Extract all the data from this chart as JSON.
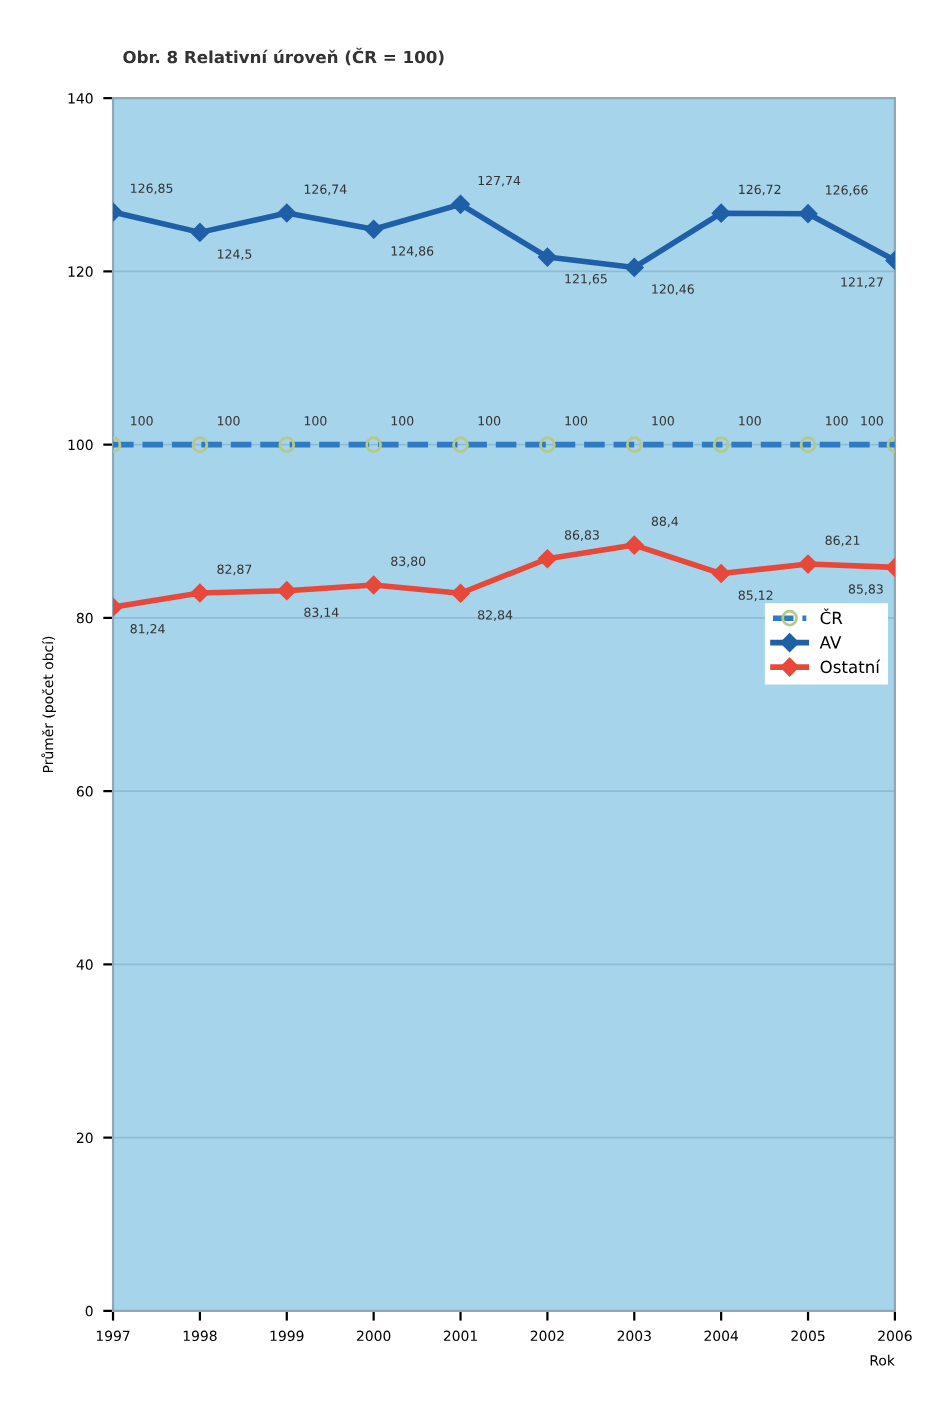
{
  "chart_data": {
    "type": "line",
    "title": "Obr. 8 Relativní úroveň (ČR = 100)",
    "ylabel": "Průměr (počet obcí)",
    "xlabel": "Rok",
    "categories": [
      "1997",
      "1998",
      "1999",
      "2000",
      "2001",
      "2002",
      "2003",
      "2004",
      "2005",
      "2006"
    ],
    "series": [
      {
        "name": "ČR",
        "color": "#2e7bc4",
        "line_style": "dashed",
        "marker": "circle",
        "values": [
          100,
          100,
          100,
          100,
          100,
          100,
          100,
          100,
          100,
          100
        ],
        "value_labels": [
          "100",
          "100",
          "100",
          "100",
          "100",
          "100",
          "100",
          "100",
          "100",
          "100"
        ]
      },
      {
        "name": "AV",
        "color": "#1f5fa8",
        "line_style": "solid",
        "marker": "diamond",
        "values": [
          126.85,
          124.5,
          126.74,
          124.86,
          127.74,
          121.65,
          120.46,
          126.72,
          126.66,
          121.27
        ],
        "value_labels": [
          "126,85",
          "124,5",
          "126,74",
          "124,86",
          "127,74",
          "121,65",
          "120,46",
          "126,72",
          "126,66",
          "121,27"
        ]
      },
      {
        "name": "Ostatní",
        "color": "#e8483a",
        "line_style": "solid",
        "marker": "diamond",
        "values": [
          81.24,
          82.87,
          83.14,
          83.8,
          82.84,
          86.83,
          88.4,
          85.12,
          86.21,
          85.83
        ],
        "value_labels": [
          "81,24",
          "82,87",
          "83,14",
          "83,80",
          "82,84",
          "86,83",
          "88,4",
          "85,12",
          "86,21",
          "85,83"
        ]
      }
    ],
    "ylim": [
      0,
      140
    ],
    "yticks": [
      0,
      20,
      40,
      60,
      80,
      100,
      120,
      140
    ],
    "grid": "y",
    "legend": "right"
  }
}
